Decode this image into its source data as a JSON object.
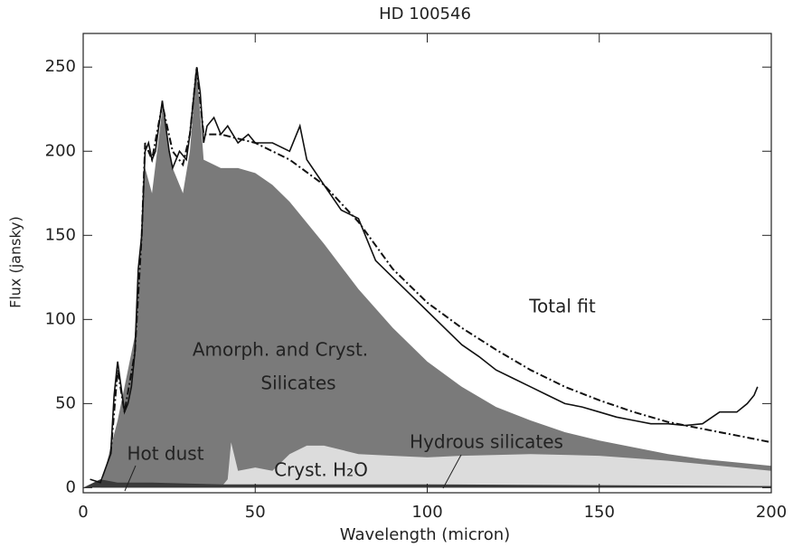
{
  "chart_data": {
    "type": "line",
    "title": "HD 100546",
    "xlabel": "Wavelength (micron)",
    "ylabel": "Flux (jansky)",
    "xlim": [
      0,
      200
    ],
    "ylim": [
      -3,
      270
    ],
    "xticks": [
      0,
      50,
      100,
      150,
      200
    ],
    "yticks": [
      0,
      50,
      100,
      150,
      200,
      250
    ],
    "annotations": [
      "Total fit",
      "Amorph. and Cryst.",
      "Silicates",
      "Hot dust",
      "Cryst. H₂O",
      "Hydrous silicates"
    ],
    "series": [
      {
        "style": "area",
        "color": "#7a7a7a",
        "x": [
          5,
          10,
          15,
          17,
          18,
          20,
          23,
          26,
          29,
          31,
          33,
          35,
          40,
          45,
          50,
          55,
          60,
          70,
          80,
          90,
          100,
          110,
          120,
          130,
          140,
          150,
          160,
          170,
          180,
          190,
          200
        ],
        "values": [
          0,
          40,
          90,
          150,
          190,
          175,
          225,
          190,
          175,
          200,
          250,
          195,
          190,
          190,
          187,
          180,
          170,
          145,
          118,
          95,
          75,
          60,
          48,
          40,
          33,
          28,
          24,
          20,
          17,
          15,
          13
        ]
      },
      {
        "style": "area",
        "color": "#dcdcdc",
        "x": [
          40,
          42,
          43,
          45,
          50,
          55,
          60,
          65,
          70,
          80,
          90,
          100,
          110,
          130,
          150,
          170,
          200
        ],
        "values": [
          0,
          5,
          27,
          10,
          12,
          10,
          20,
          25,
          25,
          20,
          19,
          18,
          19,
          20,
          19,
          16,
          10
        ]
      },
      {
        "style": "area",
        "color": "#3a3a3a",
        "x": [
          0,
          5,
          10,
          20,
          40,
          100,
          200
        ],
        "values": [
          0,
          5,
          3,
          3,
          2,
          2,
          1
        ]
      },
      {
        "style": "dashdot",
        "color": "#111",
        "x": [
          8,
          10,
          12,
          15,
          17,
          18,
          20,
          23,
          26,
          29,
          31,
          33,
          35,
          40,
          50,
          60,
          70,
          80,
          90,
          100,
          110,
          120,
          130,
          140,
          150,
          160,
          170,
          180,
          190,
          200
        ],
        "values": [
          20,
          70,
          45,
          80,
          150,
          205,
          195,
          228,
          200,
          192,
          210,
          250,
          210,
          210,
          205,
          195,
          180,
          158,
          130,
          110,
          95,
          82,
          70,
          60,
          52,
          45,
          39,
          35,
          31,
          27
        ]
      },
      {
        "style": "solid",
        "color": "#111",
        "x": [
          2,
          5,
          8,
          9,
          10,
          11,
          12,
          13,
          14,
          15,
          16,
          17,
          18,
          19,
          20,
          21,
          22,
          23,
          24,
          25,
          26,
          28,
          30,
          31,
          32,
          33,
          34,
          35,
          36,
          38,
          40,
          42,
          45,
          48,
          50,
          55,
          60,
          63,
          65,
          70,
          75,
          80,
          85,
          90,
          95,
          100,
          105,
          110,
          115,
          120,
          125,
          130,
          135,
          140,
          145,
          150,
          155,
          160,
          165,
          170,
          175,
          180,
          185,
          190,
          193,
          195,
          196
        ],
        "values": [
          5,
          3,
          20,
          55,
          75,
          60,
          45,
          50,
          60,
          80,
          130,
          150,
          200,
          205,
          195,
          200,
          215,
          230,
          215,
          200,
          190,
          200,
          195,
          210,
          230,
          250,
          235,
          205,
          215,
          220,
          210,
          215,
          205,
          210,
          205,
          205,
          200,
          215,
          195,
          180,
          165,
          160,
          135,
          125,
          115,
          105,
          95,
          85,
          78,
          70,
          65,
          60,
          55,
          50,
          48,
          45,
          42,
          40,
          38,
          38,
          37,
          38,
          45,
          45,
          50,
          55,
          60
        ]
      }
    ]
  }
}
